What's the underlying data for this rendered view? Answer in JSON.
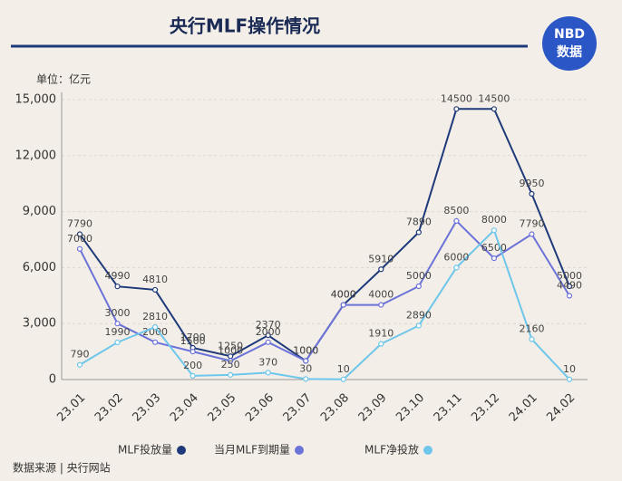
{
  "chart_data": {
    "type": "line",
    "title": "央行MLF操作情况",
    "logo": [
      "NBD",
      "数据"
    ],
    "unit_label": "单位：亿元",
    "source": "数据来源 | 央行网站",
    "categories": [
      "23.01",
      "23.02",
      "23.03",
      "23.04",
      "23.05",
      "23.06",
      "23.07",
      "23.08",
      "23.09",
      "23.10",
      "23.11",
      "23.12",
      "24.01",
      "24.02"
    ],
    "series": [
      {
        "name": "MLF投放量",
        "color": "#1f3a7a",
        "values": [
          7790,
          4990,
          4810,
          1700,
          1250,
          2370,
          1000,
          4000,
          5910,
          7890,
          14500,
          14500,
          9950,
          5000
        ]
      },
      {
        "name": "当月MLF到期量",
        "color": "#6b72d8",
        "values": [
          7000,
          3000,
          2000,
          1500,
          1000,
          2000,
          1000,
          4000,
          4000,
          5000,
          8500,
          6500,
          7790,
          4490
        ]
      },
      {
        "name": "MLF净投放",
        "color": "#6ec6ea",
        "values": [
          790,
          1990,
          2810,
          200,
          250,
          370,
          30,
          10,
          1910,
          2890,
          6000,
          8000,
          2160,
          10
        ]
      }
    ],
    "ylim": [
      0,
      15000
    ],
    "yticks": [
      0,
      {
        "value": 3000,
        "label": "3,000"
      },
      {
        "value": 6000,
        "label": "6,000"
      },
      {
        "value": 9000,
        "label": "9,000"
      },
      {
        "value": 12000,
        "label": "12,000"
      },
      {
        "value": 15000,
        "label": "15,000"
      }
    ],
    "grid": true
  }
}
